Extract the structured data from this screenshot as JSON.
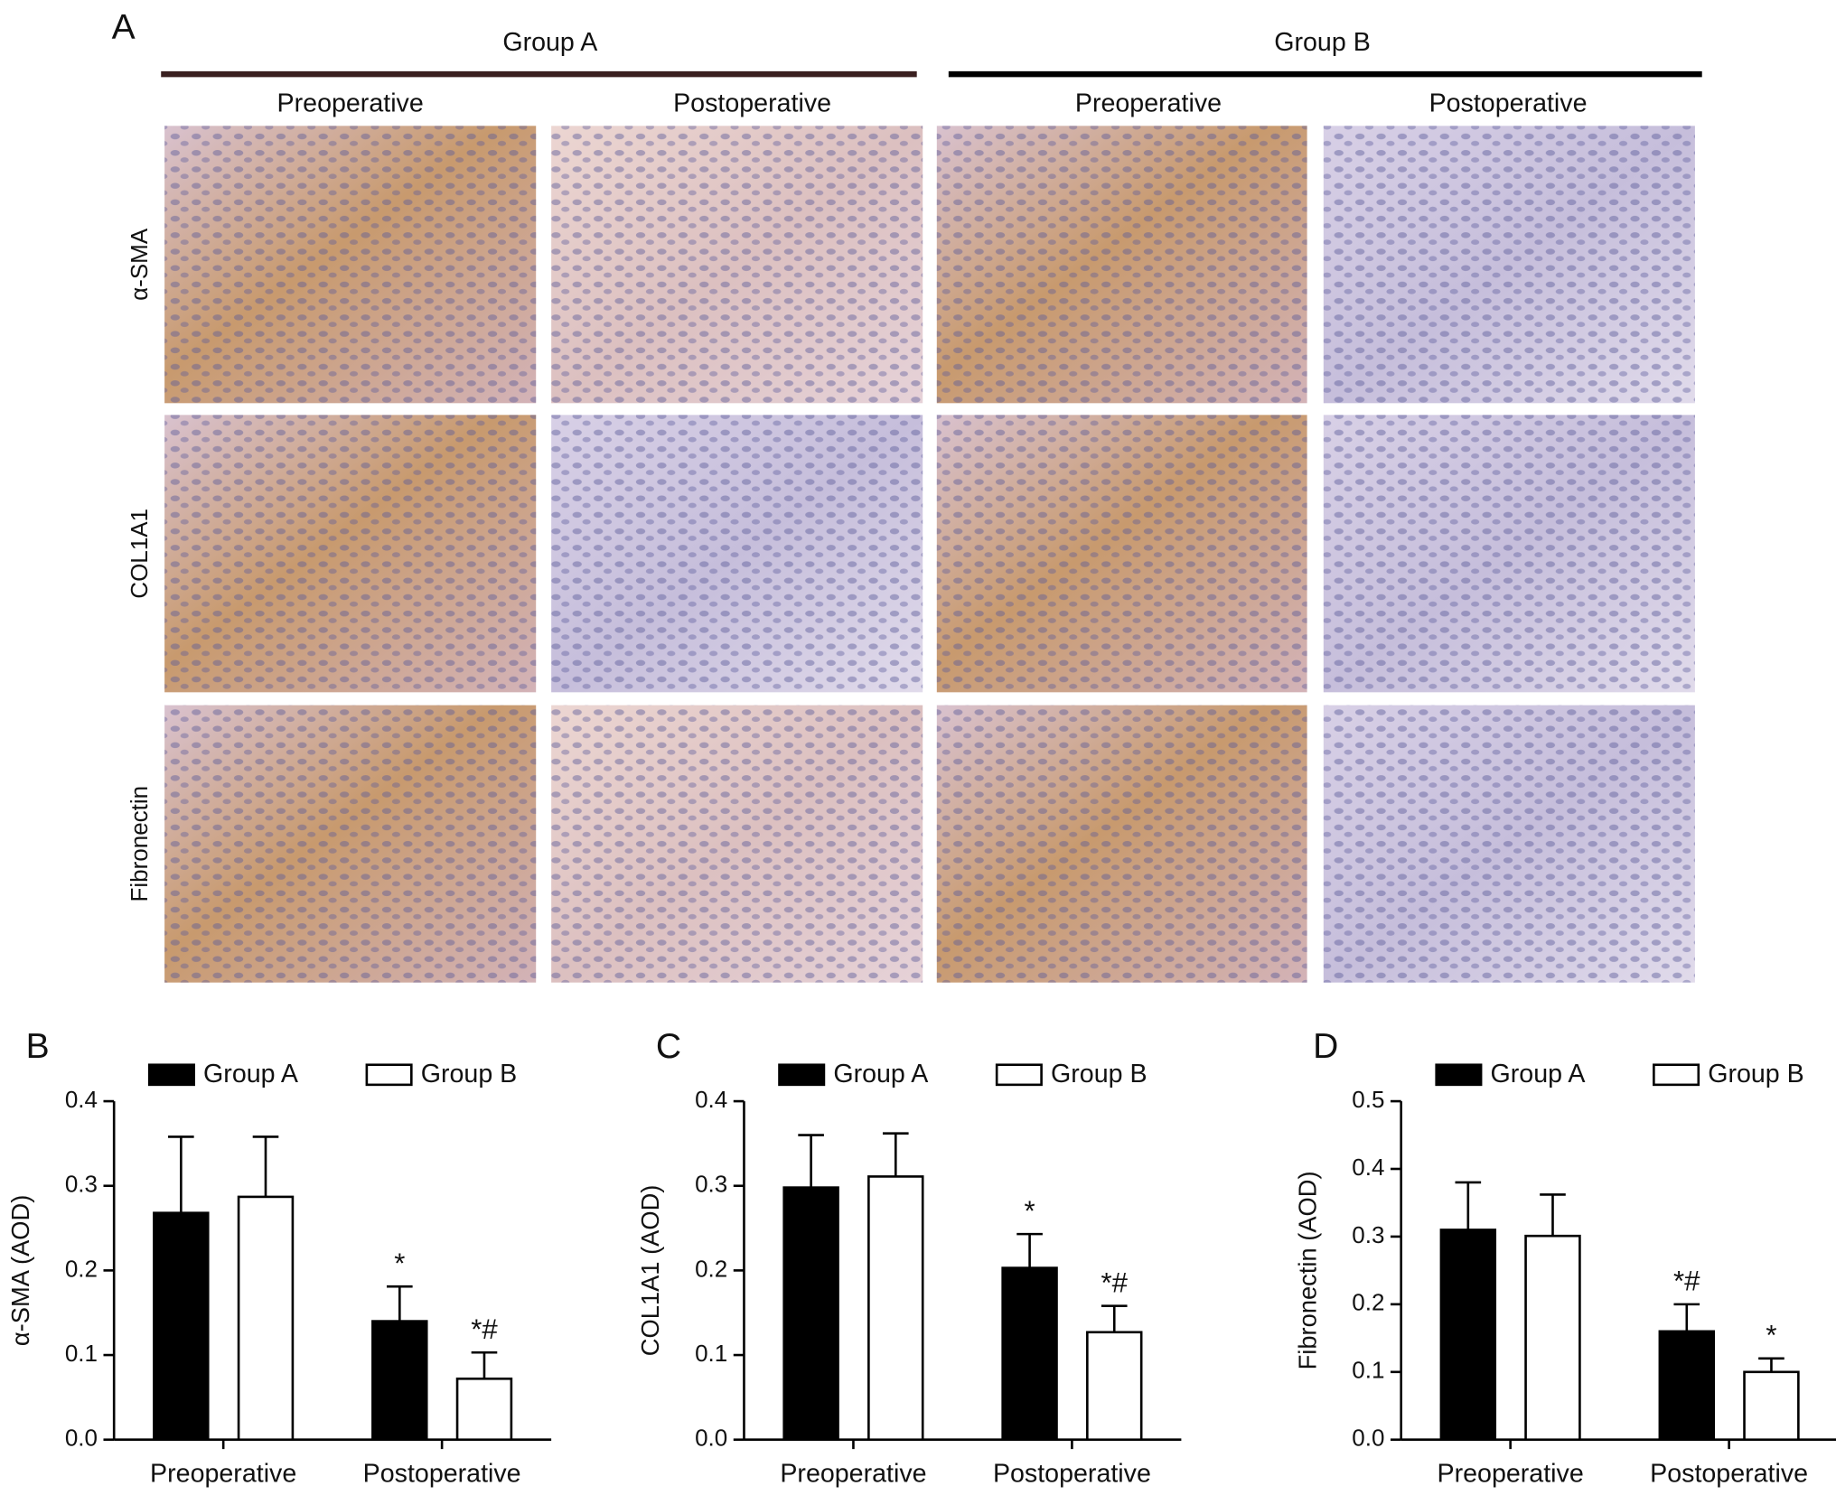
{
  "panel_a": {
    "label": "A",
    "groups": [
      "Group A",
      "Group B"
    ],
    "columns": [
      "Preoperative",
      "Postoperative",
      "Preoperative",
      "Postoperative"
    ],
    "rows": [
      "α-SMA",
      "COL1A1",
      "Fibronectin"
    ]
  },
  "chart_data": [
    {
      "type": "bar",
      "panel_label": "B",
      "y_label": "α-SMA (AOD)",
      "categories": [
        "Preoperative",
        "Postoperative"
      ],
      "series": [
        {
          "name": "Group A",
          "color": "#000000",
          "values": [
            0.268,
            0.14
          ],
          "errors": [
            0.09,
            0.041
          ],
          "annotations": [
            null,
            "*"
          ]
        },
        {
          "name": "Group B",
          "color": "#ffffff",
          "values": [
            0.287,
            0.072
          ],
          "errors": [
            0.071,
            0.031
          ],
          "annotations": [
            null,
            "*#"
          ]
        }
      ],
      "ylim": [
        0,
        0.4
      ],
      "yticks": [
        {
          "value": 0,
          "label": "0.0"
        },
        0.1,
        0.2,
        0.3,
        0.4
      ],
      "legend": "top"
    },
    {
      "type": "bar",
      "panel_label": "C",
      "y_label": "COL1A1 (AOD)",
      "categories": [
        "Preoperative",
        "Postoperative"
      ],
      "series": [
        {
          "name": "Group A",
          "color": "#000000",
          "values": [
            0.298,
            0.203
          ],
          "errors": [
            0.062,
            0.04
          ],
          "annotations": [
            null,
            "*"
          ]
        },
        {
          "name": "Group B",
          "color": "#ffffff",
          "values": [
            0.311,
            0.127
          ],
          "errors": [
            0.051,
            0.031
          ],
          "annotations": [
            null,
            "*#"
          ]
        }
      ],
      "ylim": [
        0,
        0.4
      ],
      "yticks": [
        {
          "value": 0,
          "label": "0.0"
        },
        0.1,
        0.2,
        0.3,
        0.4
      ],
      "legend": "top"
    },
    {
      "type": "bar",
      "panel_label": "D",
      "y_label": "Fibronectin (AOD)",
      "categories": [
        "Preoperative",
        "Postoperative"
      ],
      "series": [
        {
          "name": "Group A",
          "color": "#000000",
          "values": [
            0.31,
            0.16
          ],
          "errors": [
            0.07,
            0.04
          ],
          "annotations": [
            null,
            "*#"
          ]
        },
        {
          "name": "Group B",
          "color": "#ffffff",
          "values": [
            0.301,
            0.1
          ],
          "errors": [
            0.061,
            0.02
          ],
          "annotations": [
            null,
            "*"
          ]
        }
      ],
      "ylim": [
        0,
        0.5
      ],
      "yticks": [
        {
          "value": 0,
          "label": "0.0"
        },
        0.1,
        0.2,
        0.3,
        0.4,
        0.5
      ],
      "legend": "top"
    }
  ]
}
